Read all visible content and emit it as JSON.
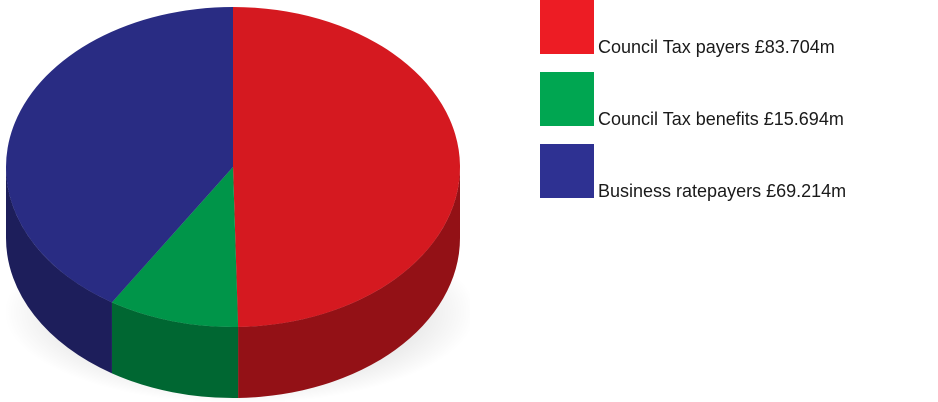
{
  "chart_data": {
    "type": "pie",
    "title": "",
    "style": "3d",
    "categories": [
      "Council Tax payers £83.704m",
      "Council Tax benefits £15.694m",
      "Business ratepayers £69.214m"
    ],
    "values": [
      83.704,
      15.694,
      69.214
    ],
    "colors": [
      "#ed1c24",
      "#00a651",
      "#2e3192"
    ],
    "legend_position": "right"
  }
}
